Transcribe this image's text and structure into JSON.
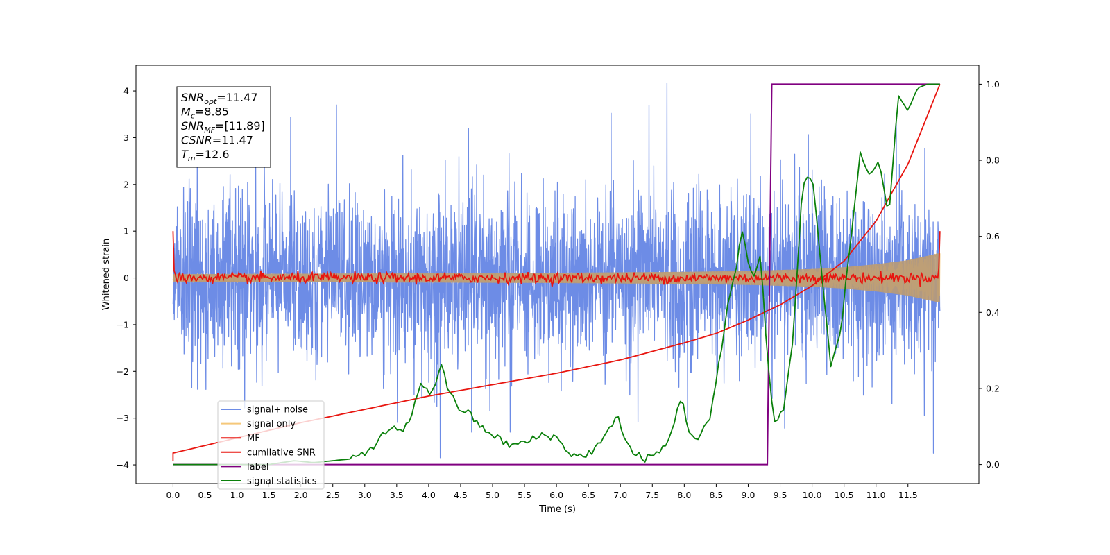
{
  "chart_data": {
    "type": "line",
    "xlabel": "Time (s)",
    "ylabel": "Whitened strain",
    "xlim": [
      -0.58,
      12.61
    ],
    "ylim": [
      -4.4,
      4.55
    ],
    "y2lim": [
      -0.05,
      1.05
    ],
    "x_ticks": [
      0.0,
      0.5,
      1.0,
      1.5,
      2.0,
      2.5,
      3.0,
      3.5,
      4.0,
      4.5,
      5.0,
      5.5,
      6.0,
      6.5,
      7.0,
      7.5,
      8.0,
      8.5,
      9.0,
      9.5,
      10.0,
      10.5,
      11.0,
      11.5
    ],
    "x_tick_labels": [
      "0.0",
      "0.5",
      "1.0",
      "1.5",
      "2.0",
      "2.5",
      "3.0",
      "3.5",
      "4.0",
      "4.5",
      "5.0",
      "5.5",
      "6.0",
      "6.5",
      "7.0",
      "7.5",
      "8.0",
      "8.5",
      "9.0",
      "9.5",
      "10.0",
      "10.5",
      "11.0",
      "11.5"
    ],
    "y_ticks": [
      -4,
      -3,
      -2,
      -1,
      0,
      1,
      2,
      3,
      4
    ],
    "y_tick_labels": [
      "−4",
      "−3",
      "−2",
      "−1",
      "0",
      "1",
      "2",
      "3",
      "4"
    ],
    "y2_ticks": [
      0.0,
      0.2,
      0.4,
      0.6,
      0.8,
      1.0
    ],
    "y2_tick_labels": [
      "0.0",
      "0.2",
      "0.4",
      "0.6",
      "0.8",
      "1.0"
    ],
    "grid": false,
    "legend_position": "lower-left",
    "annotation": {
      "lines": [
        {
          "base": "SNR",
          "sub": "opt",
          "rest": "=11.47"
        },
        {
          "base": "M",
          "sub": "c",
          "rest": "=8.85"
        },
        {
          "base": "SNR",
          "sub": "MF",
          "rest": "=[11.89]"
        },
        {
          "base": "CSNR",
          "sub": "",
          "rest": "=11.47"
        },
        {
          "base": "T",
          "sub": "m",
          "rest": "=12.6"
        }
      ]
    },
    "series": [
      {
        "name": "signal+ noise",
        "color": "#6d8ce6",
        "axis": "left",
        "description": "noise samples, amplitude range approx -3.8..4.2",
        "x_range": [
          0.0,
          12.0
        ],
        "envelope": [
          -1.8,
          2.3
        ],
        "notable_spikes": [
          {
            "x": 7.73,
            "y": 4.17
          },
          {
            "x": 4.18,
            "y": -3.85
          },
          {
            "x": 11.9,
            "y": -3.75
          }
        ]
      },
      {
        "name": "signal only",
        "color": "#f5c87a",
        "axis": "left",
        "description": "chirp envelope growing toward merger",
        "x": [
          0,
          2,
          4,
          6,
          8,
          9,
          10,
          10.5,
          11,
          11.5,
          12
        ],
        "amplitude": [
          0.08,
          0.09,
          0.1,
          0.11,
          0.13,
          0.15,
          0.19,
          0.23,
          0.29,
          0.38,
          0.53
        ]
      },
      {
        "name": "MF",
        "color": "#e8150f",
        "axis": "left",
        "description": "matched-filter output, noisy around 0 with amplitude ~0.1",
        "x_range": [
          0.0,
          12.0
        ],
        "start_value": 1.0,
        "end_value": 1.0
      },
      {
        "name": "cumilative SNR",
        "color": "#e8150f",
        "axis": "right",
        "x": [
          0,
          0.5,
          1,
          2,
          3,
          4,
          5,
          6,
          7,
          8,
          8.5,
          9,
          9.5,
          10,
          10.5,
          11,
          11.5,
          12
        ],
        "y": [
          0.03,
          0.05,
          0.07,
          0.11,
          0.145,
          0.18,
          0.21,
          0.24,
          0.275,
          0.32,
          0.345,
          0.38,
          0.42,
          0.47,
          0.535,
          0.64,
          0.79,
          1.0
        ]
      },
      {
        "name": "label",
        "color": "#800080",
        "axis": "right",
        "x": [
          0.0,
          9.3,
          9.37,
          12.0
        ],
        "y": [
          0.0,
          0.0,
          1.0,
          1.0
        ]
      },
      {
        "name": "signal statistics",
        "color": "#0a800a",
        "axis": "right",
        "x": [
          0.0,
          0.5,
          1.0,
          1.5,
          1.9,
          2.2,
          2.5,
          2.8,
          3.0,
          3.2,
          3.4,
          3.6,
          3.75,
          3.9,
          4.0,
          4.1,
          4.2,
          4.3,
          4.45,
          4.6,
          4.8,
          5.0,
          5.15,
          5.3,
          5.55,
          5.8,
          6.0,
          6.2,
          6.4,
          6.6,
          6.8,
          6.95,
          7.05,
          7.2,
          7.4,
          7.6,
          7.75,
          7.85,
          7.95,
          8.05,
          8.2,
          8.4,
          8.6,
          8.7,
          8.8,
          8.9,
          9.0,
          9.1,
          9.2,
          9.3,
          9.4,
          9.55,
          9.7,
          9.85,
          10.0,
          10.15,
          10.3,
          10.45,
          10.6,
          10.75,
          10.9,
          11.05,
          11.2,
          11.35,
          11.5,
          11.65,
          11.8,
          12.0
        ],
        "y": [
          0.0,
          0.0,
          0.0,
          0.0,
          0.01,
          0.005,
          0.01,
          0.015,
          0.03,
          0.06,
          0.1,
          0.08,
          0.14,
          0.22,
          0.18,
          0.21,
          0.27,
          0.2,
          0.15,
          0.14,
          0.1,
          0.08,
          0.06,
          0.05,
          0.06,
          0.08,
          0.07,
          0.03,
          0.02,
          0.04,
          0.08,
          0.14,
          0.07,
          0.03,
          0.015,
          0.03,
          0.06,
          0.12,
          0.18,
          0.1,
          0.06,
          0.12,
          0.32,
          0.45,
          0.5,
          0.62,
          0.53,
          0.5,
          0.55,
          0.28,
          0.11,
          0.14,
          0.33,
          0.73,
          0.77,
          0.5,
          0.25,
          0.36,
          0.58,
          0.82,
          0.76,
          0.8,
          0.64,
          0.97,
          0.93,
          0.99,
          1.0,
          1.0
        ]
      }
    ]
  }
}
